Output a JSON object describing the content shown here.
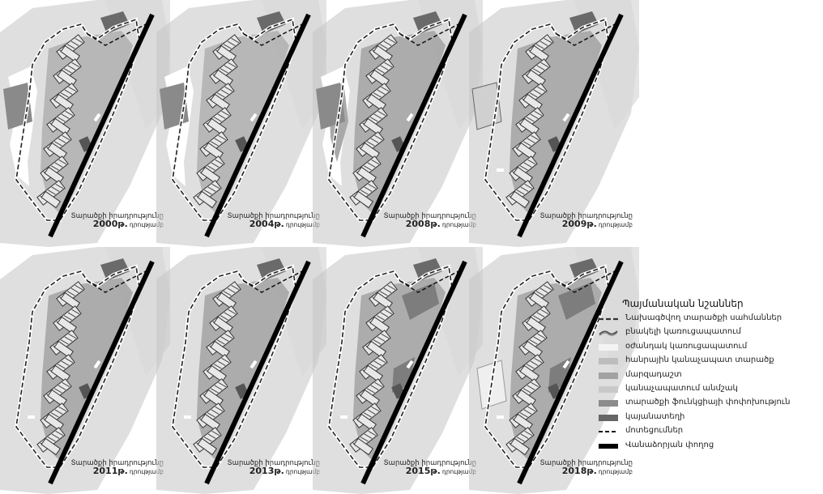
{
  "panels": [
    {
      "caption_line1": "Տարածքի իրադրությունը",
      "year": "2000թ.",
      "suffix": "դրությամբ",
      "stage": 0
    },
    {
      "caption_line1": "Տարածքի իրադրությունը",
      "year": "2004թ.",
      "suffix": "դրությամբ",
      "stage": 1
    },
    {
      "caption_line1": "Տարածքի իրադրությունը",
      "year": "2008թ.",
      "suffix": "դրությամբ",
      "stage": 2
    },
    {
      "caption_line1": "Տարածքի իրադրությունը",
      "year": "2009թ.",
      "suffix": "դրությամբ",
      "stage": 3
    },
    {
      "caption_line1": "Տարածքի իրադրությունը",
      "year": "2011թ.",
      "suffix": "դրությամբ",
      "stage": 4
    },
    {
      "caption_line1": "Տարածքի իրադրությունը",
      "year": "2013թ.",
      "suffix": "դրությամբ",
      "stage": 4
    },
    {
      "caption_line1": "Տարածքի իրադրությունը",
      "year": "2015թ.",
      "suffix": "դրությամբ",
      "stage": 5
    },
    {
      "caption_line1": "Տարածքի իրադրությունը",
      "year": "2018թ.",
      "suffix": "դրությամբ",
      "stage": 6
    }
  ],
  "legend": {
    "title": "Պայմանական նշաններ",
    "items": [
      {
        "label": "Նախագծվող տարածքի սահմաններ",
        "symbol": "dashed-border",
        "color": "#333333"
      },
      {
        "label": "բնակելի կառուցապատում",
        "symbol": "hatched-building",
        "color": "#555555"
      },
      {
        "label": "օժանդակ կառուցապատում",
        "symbol": "fill",
        "color": "#f4f4f4"
      },
      {
        "label": "հանրային կանաչապատ տարածք",
        "symbol": "fill",
        "color": "#bdbdbd"
      },
      {
        "label": "մարզադաշտ",
        "symbol": "fill",
        "color": "#a2a2a2"
      },
      {
        "label": "կանաչապատում անմշակ",
        "symbol": "fill",
        "color": "#c9c9c9"
      },
      {
        "label": "տարածքի ֆունկցիայի փոփոխություն",
        "symbol": "fill",
        "color": "#8c8c8c"
      },
      {
        "label": "կայանատեղի",
        "symbol": "fill",
        "color": "#666666"
      },
      {
        "label": "մոտեցումներ",
        "symbol": "dashed-line",
        "color": "#111111"
      },
      {
        "label": "Վանաձորյան փողոց",
        "symbol": "thick-line",
        "color": "#000000"
      }
    ]
  },
  "colors": {
    "satellite_background": "#c4c4c4",
    "green_area": "#a9a9a9",
    "building": "#e8e8e8",
    "road": "#000000",
    "boundary": "#222222",
    "aux_white": "#ffffff",
    "function_change": "#7d7d7d"
  }
}
